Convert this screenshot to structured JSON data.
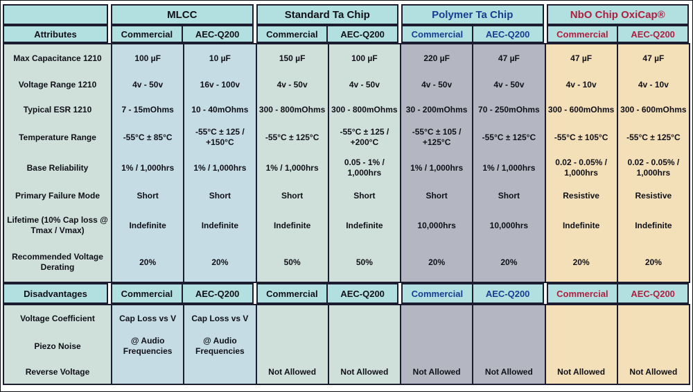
{
  "header": {
    "corner_label": "",
    "attributes_label": "Attributes",
    "disadvantages_label": "Disadvantages",
    "groups": [
      {
        "label": "MLCC",
        "color": "#101018",
        "cols": [
          "Commercial",
          "AEC-Q200"
        ]
      },
      {
        "label": "Standard Ta Chip",
        "color": "#101018",
        "cols": [
          "Commercial",
          "AEC-Q200"
        ]
      },
      {
        "label": "Polymer Ta Chip",
        "color": "#173d91",
        "cols": [
          "Commercial",
          "AEC-Q200"
        ]
      },
      {
        "label": "NbO Chip OxiCap®",
        "color": "#b01e3f",
        "cols": [
          "Commercial",
          "AEC-Q200"
        ]
      }
    ]
  },
  "attribute_rows": [
    {
      "label": "Max Capacitance 1210",
      "values": [
        "100 µF",
        "10 µF",
        "150 µF",
        "100 µF",
        "220 µF",
        "47 µF",
        "47 µF",
        "47 µF"
      ]
    },
    {
      "label": "Voltage Range 1210",
      "values": [
        "4v - 50v",
        "16v - 100v",
        "4v - 50v",
        "4v - 50v",
        "4v - 50v",
        "4v - 50v",
        "4v - 10v",
        "4v - 10v"
      ]
    },
    {
      "label": "Typical ESR 1210",
      "values": [
        "7 - 15mOhms",
        "10 - 40mOhms",
        "300 - 800mOhms",
        "300 - 800mOhms",
        "30 - 200mOhms",
        "70 - 250mOhms",
        "300 - 600mOhms",
        "300 - 600mOhms"
      ]
    },
    {
      "label": "Temperature Range",
      "values": [
        "-55°C ± 85°C",
        "-55°C ± 125 / +150°C",
        "-55°C ± 125°C",
        "-55°C ± 125 / +200°C",
        "-55°C ± 105 / +125°C",
        "-55°C ± 125°C",
        "-55°C ± 105°C",
        "-55°C ± 125°C"
      ]
    },
    {
      "label": "Base Reliability",
      "values": [
        "1% / 1,000hrs",
        "1% / 1,000hrs",
        "1% / 1,000hrs",
        "0.05 - 1% / 1,000hrs",
        "1% / 1,000hrs",
        "1% / 1,000hrs",
        "0.02 - 0.05% / 1,000hrs",
        "0.02 - 0.05% / 1,000hrs"
      ]
    },
    {
      "label": "Primary Failure Mode",
      "values": [
        "Short",
        "Short",
        "Short",
        "Short",
        "Short",
        "Short",
        "Resistive",
        "Resistive"
      ]
    },
    {
      "label": "Lifetime (10% Cap loss @ Tmax / Vmax)",
      "values": [
        "Indefinite",
        "Indefinite",
        "Indefinite",
        "Indefinite",
        "10,000hrs",
        "10,000hrs",
        "Indefinite",
        "Indefinite"
      ]
    },
    {
      "label": "Recommended Voltage Derating",
      "values": [
        "20%",
        "20%",
        "50%",
        "50%",
        "20%",
        "20%",
        "20%",
        "20%"
      ]
    }
  ],
  "disadvantage_rows": [
    {
      "label": "Voltage Coefficient",
      "values": [
        "Cap Loss vs V",
        "Cap Loss vs V",
        "",
        "",
        "",
        "",
        "",
        ""
      ]
    },
    {
      "label": "Piezo Noise",
      "values": [
        "@ Audio Frequencies",
        "@ Audio Frequencies",
        "",
        "",
        "",
        "",
        "",
        ""
      ]
    },
    {
      "label": "Reverse Voltage",
      "values": [
        "",
        "",
        "Not Allowed",
        "Not Allowed",
        "Not Allowed",
        "Not Allowed",
        "Not Allowed",
        "Not Allowed"
      ]
    }
  ],
  "colors": {
    "border": "#1c1c30",
    "header_bg": "#b2e0e0",
    "attributes_col_bg": "#cfdfd9",
    "column_bgs": [
      "#c5dce4",
      "#c5dce4",
      "#cfdfd9",
      "#cfdfd9",
      "#b4b7c2",
      "#b4b7c2",
      "#f3dfb8",
      "#f3dfb8"
    ]
  }
}
